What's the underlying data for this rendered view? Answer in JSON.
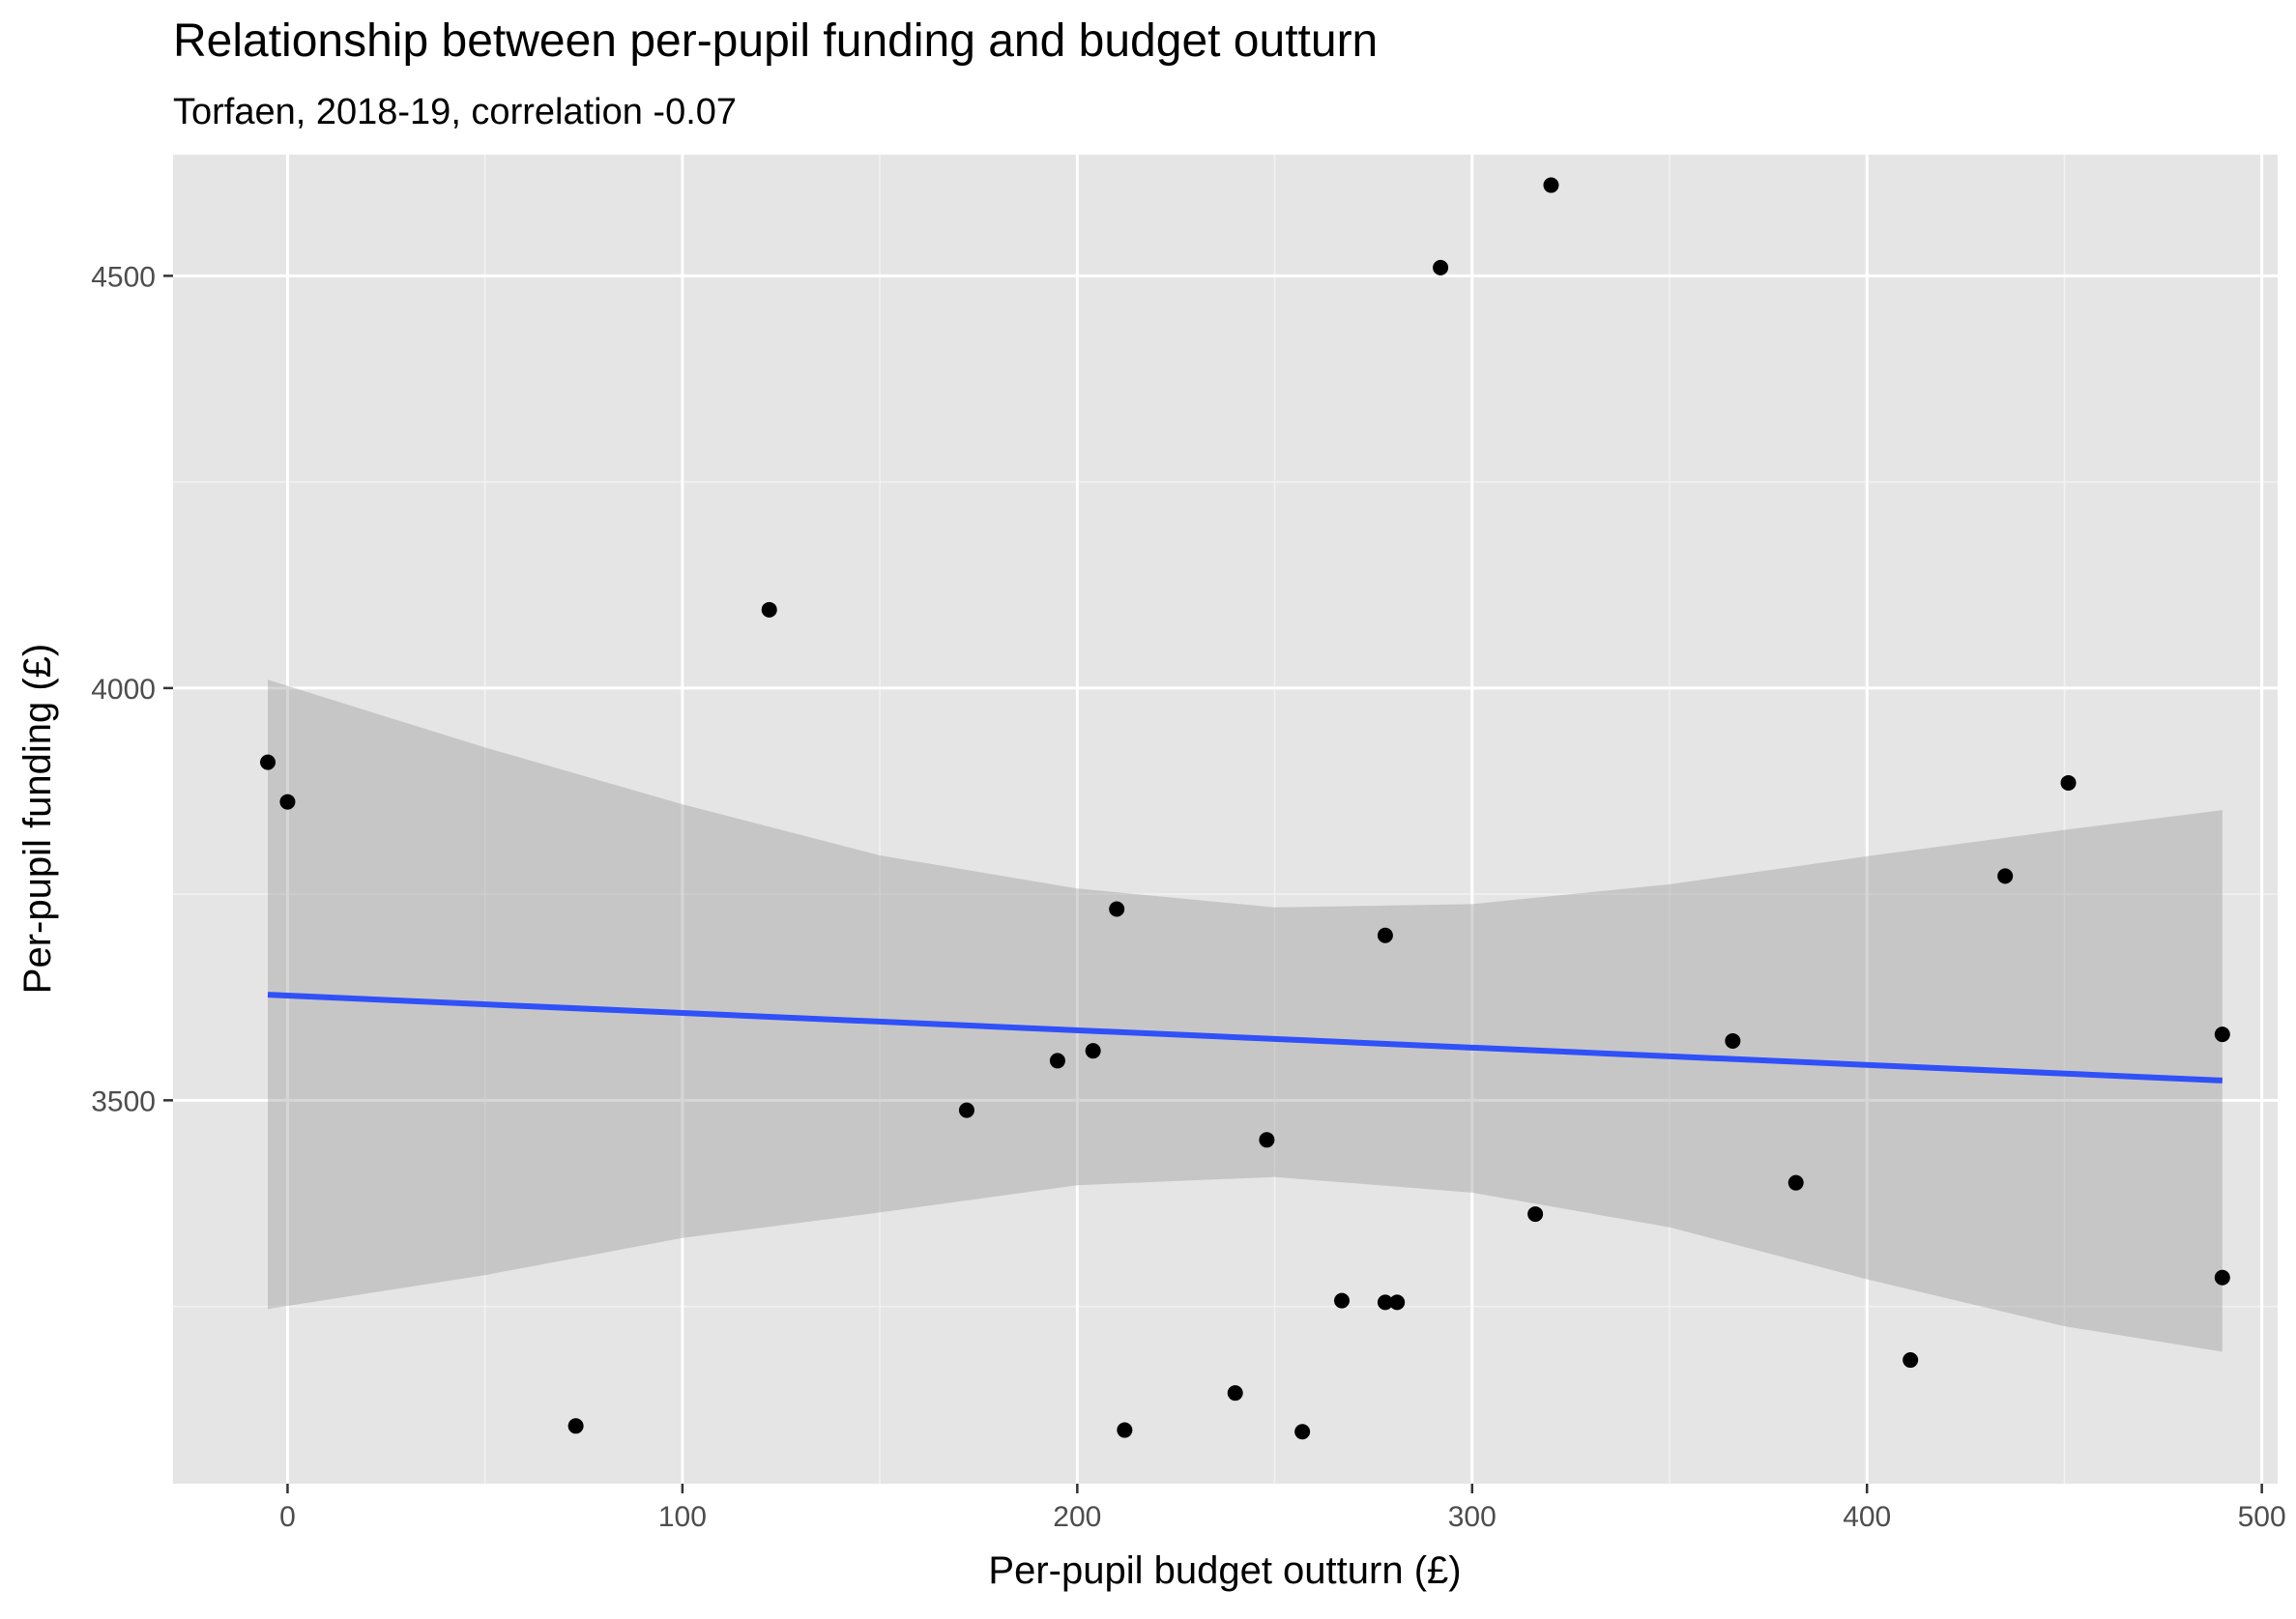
{
  "chart_data": {
    "type": "scatter",
    "title": "Relationship between per-pupil funding and budget outturn",
    "subtitle": "Torfaen, 2018-19, correlation -0.07",
    "xlabel": "Per-pupil budget outturn (£)",
    "ylabel": "Per-pupil funding (£)",
    "xlim": [
      -29,
      504
    ],
    "ylim": [
      3035,
      4647
    ],
    "x_ticks": [
      0,
      100,
      200,
      300,
      400,
      500
    ],
    "x_tick_labels": [
      "0",
      "100",
      "200",
      "300",
      "400",
      "500"
    ],
    "y_ticks": [
      3500,
      4000,
      4500
    ],
    "y_tick_labels": [
      "3500",
      "4000",
      "4500"
    ],
    "grid": true,
    "background_color": "#E5E5E5",
    "point_color": "#000000",
    "fit_line_color": "#3050F8",
    "ribbon_color": "#999999",
    "points": [
      {
        "x": -5,
        "y": 3910
      },
      {
        "x": 0,
        "y": 3862
      },
      {
        "x": 73,
        "y": 3105
      },
      {
        "x": 122,
        "y": 4095
      },
      {
        "x": 172,
        "y": 3488
      },
      {
        "x": 195,
        "y": 3548
      },
      {
        "x": 204,
        "y": 3560
      },
      {
        "x": 210,
        "y": 3732
      },
      {
        "x": 212,
        "y": 3100
      },
      {
        "x": 240,
        "y": 3145
      },
      {
        "x": 248,
        "y": 3452
      },
      {
        "x": 257,
        "y": 3098
      },
      {
        "x": 267,
        "y": 3257
      },
      {
        "x": 278,
        "y": 3255
      },
      {
        "x": 278,
        "y": 3700
      },
      {
        "x": 281,
        "y": 3255
      },
      {
        "x": 292,
        "y": 4510
      },
      {
        "x": 316,
        "y": 3362
      },
      {
        "x": 320,
        "y": 4610
      },
      {
        "x": 366,
        "y": 3572
      },
      {
        "x": 382,
        "y": 3400
      },
      {
        "x": 411,
        "y": 3185
      },
      {
        "x": 435,
        "y": 3772
      },
      {
        "x": 451,
        "y": 3885
      },
      {
        "x": 490,
        "y": 3580
      },
      {
        "x": 490,
        "y": 3285
      }
    ],
    "fit_line": {
      "x": [
        -5,
        490
      ],
      "y": [
        3628,
        3524
      ]
    },
    "confidence_band": {
      "x": [
        -5,
        50,
        100,
        150,
        200,
        250,
        300,
        350,
        400,
        450,
        490
      ],
      "upper": [
        4010,
        3928,
        3859,
        3797,
        3757,
        3734,
        3738,
        3762,
        3796,
        3828,
        3852
      ],
      "lower": [
        3247,
        3288,
        3333,
        3364,
        3397,
        3407,
        3388,
        3346,
        3283,
        3226,
        3195
      ]
    }
  }
}
